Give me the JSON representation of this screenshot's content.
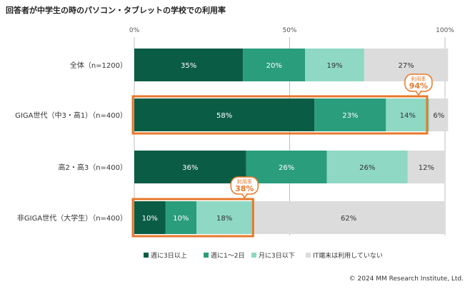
{
  "chart_data": {
    "type": "bar",
    "orientation": "horizontal",
    "stacked": true,
    "percent_stacked": true,
    "title": "回答者が中学生の時のパソコン・タブレットの学校での利用率",
    "categories": [
      "全体（n=1200）",
      "GIGA世代（中3・高1）（n=400）",
      "高2・高3（n=400）",
      "非GIGA世代（大学生）（n=400）"
    ],
    "xlim": [
      0,
      100
    ],
    "x_ticks": [
      0,
      50,
      100
    ],
    "x_tick_labels": [
      "0%",
      "50%",
      "100%"
    ],
    "grid": true,
    "legend_position": "bottom",
    "series": [
      {
        "name": "週に3日以上",
        "values": [
          35,
          58,
          36,
          10
        ],
        "color": "#0b5c45"
      },
      {
        "name": "週に1～2日",
        "values": [
          20,
          23,
          26,
          10
        ],
        "color": "#2a9d7c"
      },
      {
        "name": "月に3日以下",
        "values": [
          19,
          14,
          26,
          18
        ],
        "color": "#8ed8c4"
      },
      {
        "name": "IT端末は利用していない",
        "values": [
          27,
          6,
          12,
          62
        ],
        "color": "#dcdcdc"
      }
    ],
    "data_label_colors": [
      "#ffffff",
      "#ffffff",
      "#333333",
      "#333333"
    ],
    "highlights": [
      {
        "category_index": 1,
        "label": "利用率",
        "value": "94%"
      },
      {
        "category_index": 3,
        "label": "利用率",
        "value": "38%"
      }
    ],
    "highlight_color": "#e8782b"
  },
  "footer": {
    "copyright": "© 2024 MM Research Institute, Ltd."
  }
}
